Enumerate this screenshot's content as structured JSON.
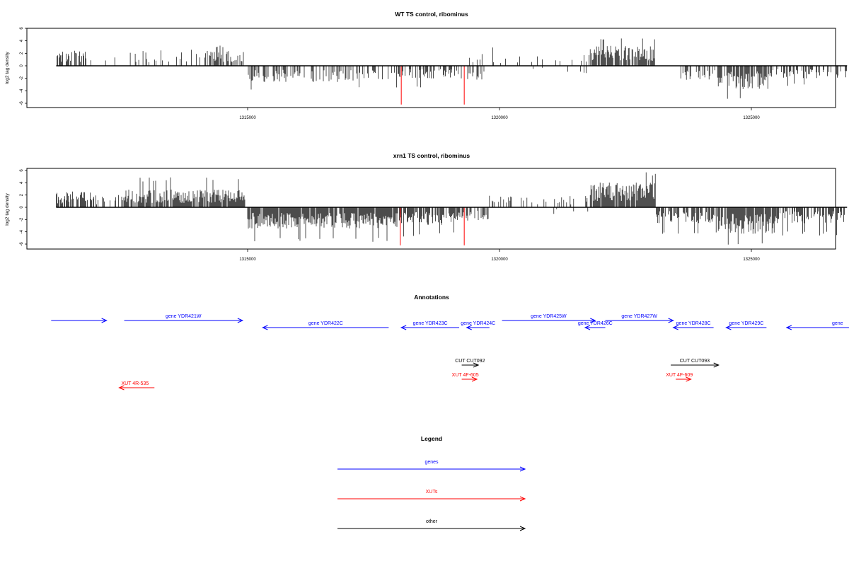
{
  "chart_data": [
    {
      "type": "bar",
      "title": "WT TS control, ribominus",
      "xlabel": "",
      "ylabel": "log2 tag density",
      "xlim": [
        1311100,
        1327100
      ],
      "ylim": [
        -6,
        6
      ],
      "xticks": [
        1315000,
        1320000,
        1325000
      ],
      "xtick_labels": [
        "1315000",
        "1320000",
        "1325000"
      ],
      "yticks": [
        6,
        4,
        2,
        0,
        -2,
        -4,
        -6
      ],
      "ytick_labels": [
        "6",
        "4",
        "2",
        "0",
        "-2",
        "-4",
        "-6"
      ],
      "segments": [
        {
          "from": 1311200,
          "to": 1311800,
          "strand": "+",
          "avg": 1.6,
          "max": 2.8,
          "density": 0.6
        },
        {
          "from": 1311800,
          "to": 1312600,
          "strand": "+",
          "avg": 1.2,
          "max": 3.0,
          "density": 0.15
        },
        {
          "from": 1312600,
          "to": 1313000,
          "strand": "+",
          "avg": 1.8,
          "max": 3.0,
          "density": 0.35
        },
        {
          "from": 1313000,
          "to": 1314200,
          "strand": "+",
          "avg": 1.5,
          "max": 2.6,
          "density": 0.18
        },
        {
          "from": 1314200,
          "to": 1314950,
          "strand": "+",
          "avg": 1.7,
          "max": 3.4,
          "density": 0.5
        },
        {
          "from": 1315000,
          "to": 1317200,
          "strand": "-",
          "avg": -1.8,
          "max": -4.2,
          "density": 0.45
        },
        {
          "from": 1317200,
          "to": 1318000,
          "strand": "-",
          "avg": -1.5,
          "max": -3.8,
          "density": 0.3
        },
        {
          "from": 1318000,
          "to": 1319200,
          "strand": "-",
          "avg": -1.4,
          "max": -3.5,
          "density": 0.35
        },
        {
          "from": 1319200,
          "to": 1319700,
          "strand": "-",
          "avg": -1.6,
          "max": -4.0,
          "density": 0.3
        },
        {
          "from": 1319400,
          "to": 1319700,
          "strand": "+",
          "avg": 1.2,
          "max": 2.2,
          "density": 0.2
        },
        {
          "from": 1319700,
          "to": 1321800,
          "strand": "+",
          "avg": 1.2,
          "max": 3.0,
          "density": 0.1
        },
        {
          "from": 1320500,
          "to": 1321800,
          "strand": "-",
          "avg": -0.8,
          "max": -3.2,
          "density": 0.05
        },
        {
          "from": 1321800,
          "to": 1323100,
          "strand": "+",
          "avg": 2.2,
          "max": 4.7,
          "density": 0.75
        },
        {
          "from": 1323500,
          "to": 1324300,
          "strand": "-",
          "avg": -1.6,
          "max": -4.0,
          "density": 0.35
        },
        {
          "from": 1324300,
          "to": 1325400,
          "strand": "-",
          "avg": -2.6,
          "max": -5.5,
          "density": 0.8
        },
        {
          "from": 1325400,
          "to": 1326900,
          "strand": "-",
          "avg": -1.4,
          "max": -3.2,
          "density": 0.4
        }
      ],
      "highlights": [
        {
          "x": 1318050,
          "y": -6.2,
          "color": "#ff0000"
        },
        {
          "x": 1319300,
          "y": -6.2,
          "color": "#ff0000"
        }
      ]
    },
    {
      "type": "bar",
      "title": "xrn1 TS control, ribominus",
      "xlabel": "",
      "ylabel": "log2 tag density",
      "xlim": [
        1311100,
        1327100
      ],
      "ylim": [
        -6,
        6
      ],
      "xticks": [
        1315000,
        1320000,
        1325000
      ],
      "xtick_labels": [
        "1315000",
        "1320000",
        "1325000"
      ],
      "yticks": [
        6,
        4,
        2,
        0,
        -2,
        -4,
        -6
      ],
      "ytick_labels": [
        "6",
        "4",
        "2",
        "0",
        "-2",
        "-4",
        "-6"
      ],
      "segments": [
        {
          "from": 1311200,
          "to": 1312000,
          "strand": "+",
          "avg": 1.8,
          "max": 5.2,
          "density": 0.65
        },
        {
          "from": 1312000,
          "to": 1312500,
          "strand": "+",
          "avg": 1.4,
          "max": 3.0,
          "density": 0.3
        },
        {
          "from": 1312500,
          "to": 1314950,
          "strand": "+",
          "avg": 2.0,
          "max": 4.9,
          "density": 0.85
        },
        {
          "from": 1315000,
          "to": 1318000,
          "strand": "-",
          "avg": -2.4,
          "max": -5.8,
          "density": 0.9
        },
        {
          "from": 1318000,
          "to": 1319200,
          "strand": "-",
          "avg": -2.0,
          "max": -4.8,
          "density": 0.8
        },
        {
          "from": 1319200,
          "to": 1319800,
          "strand": "-",
          "avg": -1.6,
          "max": -4.2,
          "density": 0.5
        },
        {
          "from": 1319800,
          "to": 1321800,
          "strand": "+",
          "avg": 1.3,
          "max": 2.9,
          "density": 0.3
        },
        {
          "from": 1320700,
          "to": 1321800,
          "strand": "-",
          "avg": -0.8,
          "max": -3.3,
          "density": 0.05
        },
        {
          "from": 1321800,
          "to": 1323100,
          "strand": "+",
          "avg": 2.8,
          "max": 5.7,
          "density": 0.95
        },
        {
          "from": 1323100,
          "to": 1324300,
          "strand": "-",
          "avg": -1.8,
          "max": -4.6,
          "density": 0.6
        },
        {
          "from": 1324300,
          "to": 1325500,
          "strand": "-",
          "avg": -3.0,
          "max": -6.1,
          "density": 0.9
        },
        {
          "from": 1325500,
          "to": 1326900,
          "strand": "-",
          "avg": -1.8,
          "max": -4.6,
          "density": 0.6
        }
      ],
      "highlights": [
        {
          "x": 1318030,
          "y": -6.2,
          "color": "#ff0000"
        },
        {
          "x": 1319300,
          "y": -6.2,
          "color": "#ff0000"
        }
      ]
    }
  ],
  "annotations": {
    "title": "Annotations",
    "features": [
      {
        "label": "",
        "start": 1311100,
        "end": 1312200,
        "strand": "+",
        "kind": "gene",
        "color": "#0000ff"
      },
      {
        "label": "gene YDR421W",
        "start": 1312550,
        "end": 1314900,
        "strand": "+",
        "kind": "gene",
        "color": "#0000ff"
      },
      {
        "label": "gene YDR422C",
        "start": 1315300,
        "end": 1317800,
        "strand": "-",
        "kind": "gene",
        "color": "#0000ff"
      },
      {
        "label": "gene YDR423C",
        "start": 1318050,
        "end": 1319200,
        "strand": "-",
        "kind": "gene",
        "color": "#0000ff"
      },
      {
        "label": "gene YDR424C",
        "start": 1319350,
        "end": 1319800,
        "strand": "-",
        "kind": "gene",
        "color": "#0000ff"
      },
      {
        "label": "gene YDR425W",
        "start": 1320050,
        "end": 1321900,
        "strand": "+",
        "kind": "gene",
        "color": "#0000ff"
      },
      {
        "label": "gene YDR426C",
        "start": 1321700,
        "end": 1322100,
        "strand": "-",
        "kind": "gene",
        "color": "#0000ff"
      },
      {
        "label": "gene YDR427W",
        "start": 1322100,
        "end": 1323450,
        "strand": "+",
        "kind": "gene",
        "color": "#0000ff"
      },
      {
        "label": "gene YDR428C",
        "start": 1323450,
        "end": 1324250,
        "strand": "-",
        "kind": "gene",
        "color": "#0000ff"
      },
      {
        "label": "gene YDR429C",
        "start": 1324500,
        "end": 1325300,
        "strand": "-",
        "kind": "gene",
        "color": "#0000ff"
      },
      {
        "label": "gene",
        "start": 1325700,
        "end": 1328500,
        "strand": "-",
        "kind": "gene",
        "color": "#0000ff"
      },
      {
        "label": "CUT CUT092",
        "start": 1319250,
        "end": 1319580,
        "strand": "+",
        "kind": "other",
        "color": "#000000"
      },
      {
        "label": "CUT CUT093",
        "start": 1323400,
        "end": 1324350,
        "strand": "+",
        "kind": "other",
        "color": "#000000"
      },
      {
        "label": "XUT 4F-605",
        "start": 1319250,
        "end": 1319550,
        "strand": "+",
        "kind": "xut",
        "color": "#ff0000"
      },
      {
        "label": "XUT 4F-609",
        "start": 1323500,
        "end": 1323800,
        "strand": "+",
        "kind": "xut",
        "color": "#ff0000"
      },
      {
        "label": "XUT 4R-535",
        "start": 1312450,
        "end": 1313150,
        "strand": "-",
        "kind": "xut",
        "color": "#ff0000"
      }
    ]
  },
  "legend": {
    "title": "Legend",
    "items": [
      {
        "label": "genes",
        "color": "#0000ff"
      },
      {
        "label": "XUTs",
        "color": "#ff0000"
      },
      {
        "label": "other",
        "color": "#000000"
      }
    ]
  }
}
